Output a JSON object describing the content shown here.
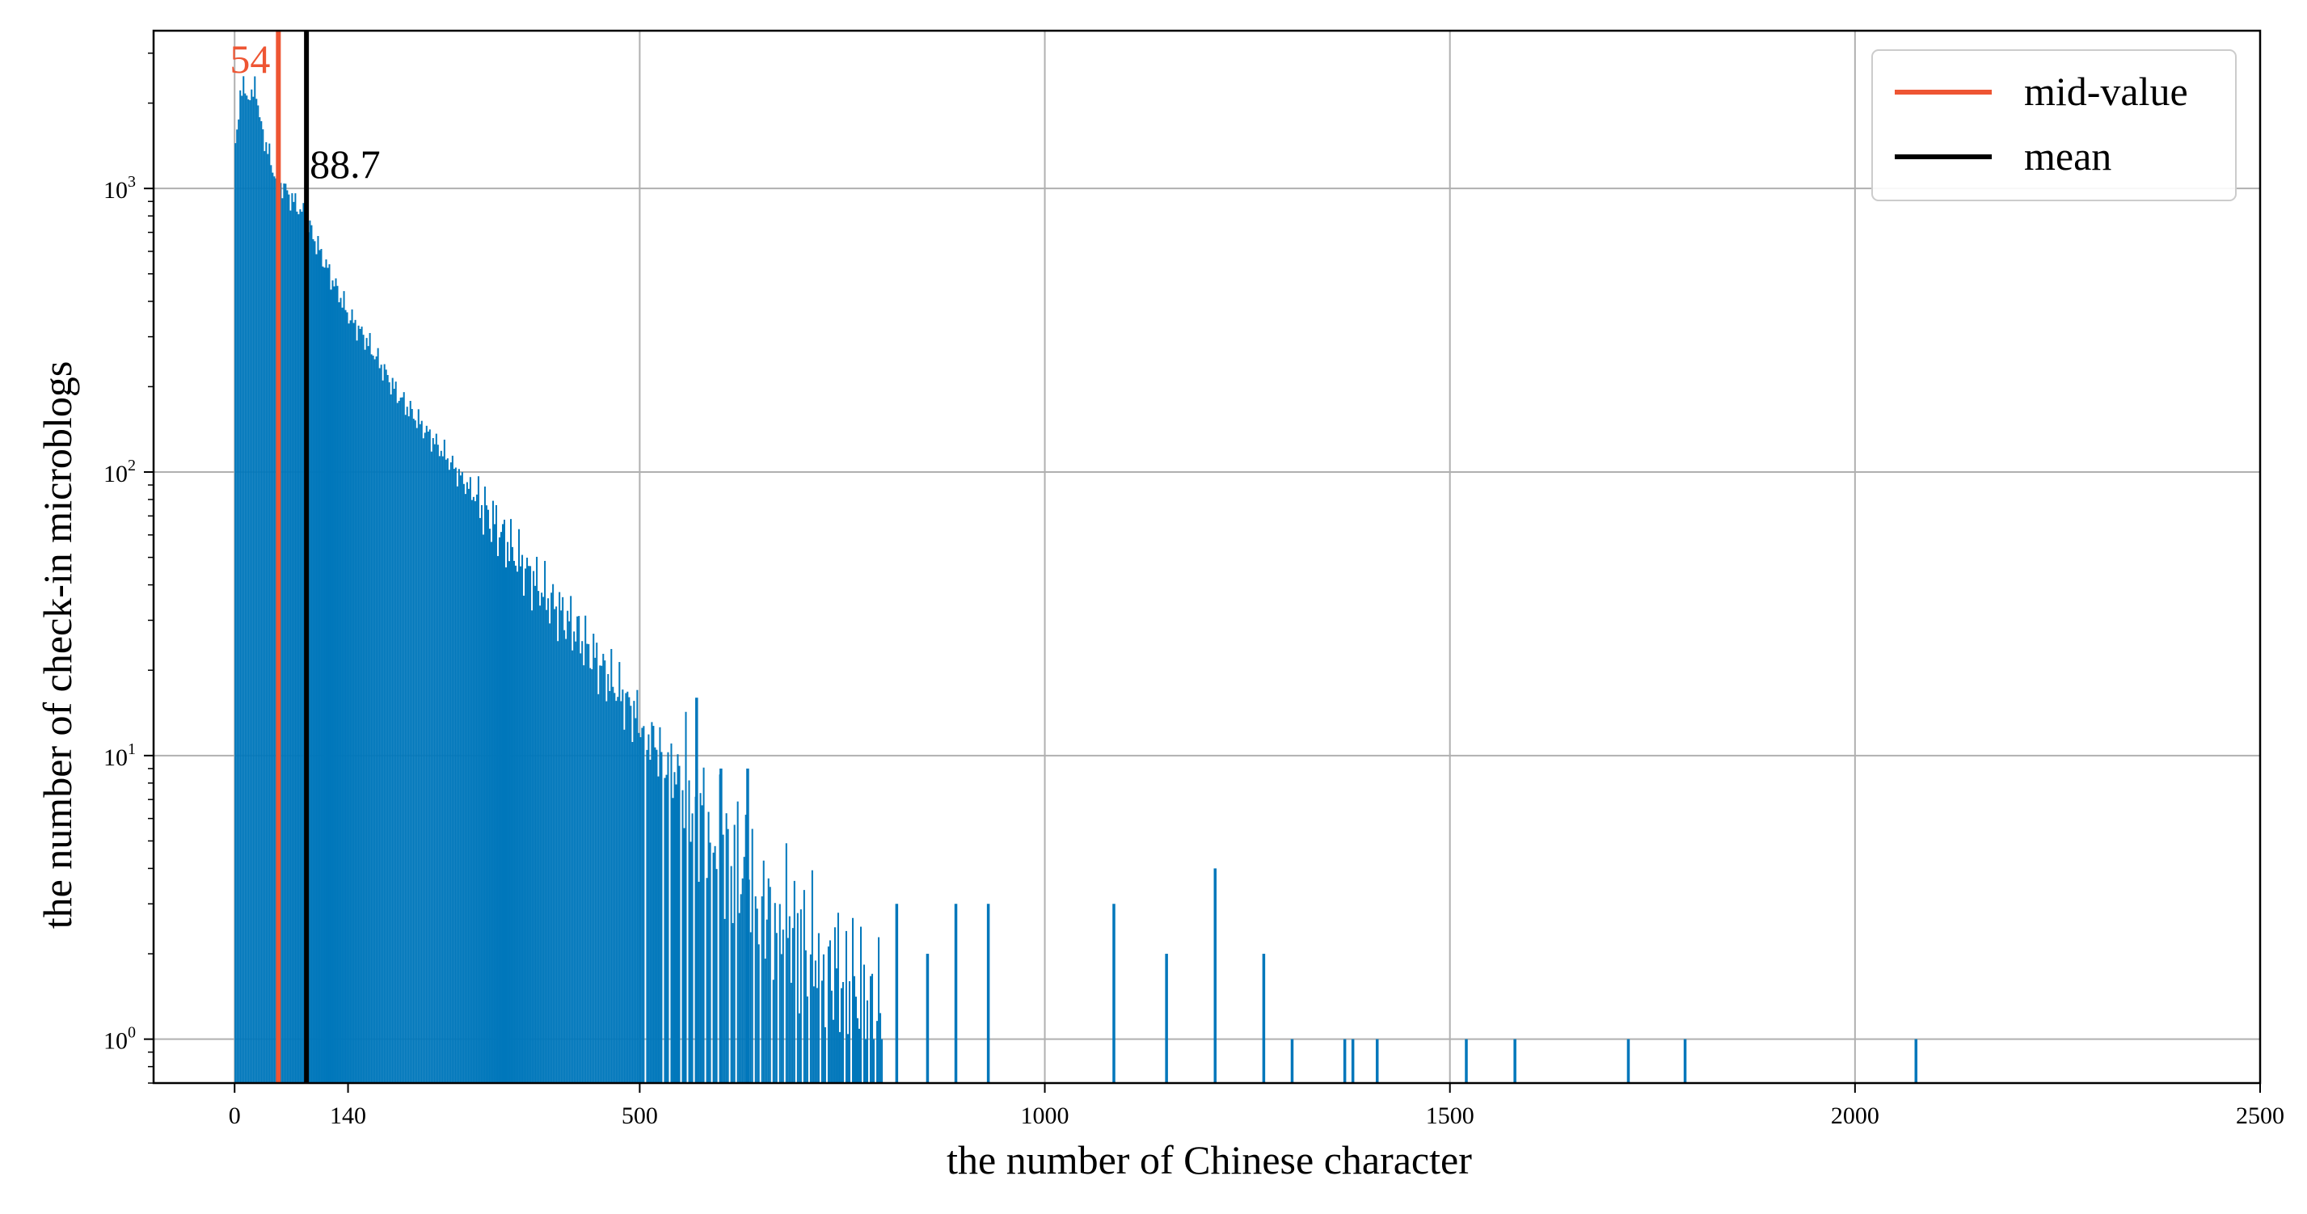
{
  "chart_data": {
    "type": "bar",
    "title": "",
    "xlabel": "the number of Chinese character",
    "ylabel": "the number of check-in microblogs",
    "x_scale": "linear",
    "y_scale": "log",
    "xlim": [
      -100,
      2500
    ],
    "ylim": [
      0.7,
      3600
    ],
    "grid": true,
    "legend_position": "top-right",
    "bar_color": "#0077bb",
    "x_ticks": [
      {
        "value": 0,
        "label": "0"
      },
      {
        "value": 140,
        "label": "140"
      },
      {
        "value": 500,
        "label": "500"
      },
      {
        "value": 1000,
        "label": "1000"
      },
      {
        "value": 1500,
        "label": "1500"
      },
      {
        "value": 2000,
        "label": "2000"
      },
      {
        "value": 2500,
        "label": "2500"
      }
    ],
    "y_ticks": [
      {
        "value": 1,
        "base": "10",
        "exp": "0"
      },
      {
        "value": 10,
        "base": "10",
        "exp": "1"
      },
      {
        "value": 100,
        "base": "10",
        "exp": "2"
      },
      {
        "value": 1000,
        "base": "10",
        "exp": "3"
      }
    ],
    "reference_lines": [
      {
        "name": "mid-value",
        "x": 54,
        "label": "54",
        "color": "#ee5533"
      },
      {
        "name": "mean",
        "x": 88.7,
        "label": "88.7",
        "color": "#000000"
      }
    ],
    "histogram_curve": {
      "bin_width": 2,
      "description_points": [
        [
          0,
          1300
        ],
        [
          4,
          1600
        ],
        [
          6,
          2200
        ],
        [
          10,
          2300
        ],
        [
          14,
          2100
        ],
        [
          18,
          2200
        ],
        [
          22,
          2000
        ],
        [
          26,
          2500
        ],
        [
          30,
          1800
        ],
        [
          34,
          1600
        ],
        [
          40,
          1400
        ],
        [
          46,
          1200
        ],
        [
          54,
          1050
        ],
        [
          62,
          1000
        ],
        [
          70,
          920
        ],
        [
          80,
          850
        ],
        [
          90,
          760
        ],
        [
          100,
          650
        ],
        [
          110,
          560
        ],
        [
          120,
          480
        ],
        [
          130,
          420
        ],
        [
          140,
          360
        ],
        [
          160,
          300
        ],
        [
          180,
          240
        ],
        [
          200,
          190
        ],
        [
          220,
          160
        ],
        [
          240,
          135
        ],
        [
          260,
          115
        ],
        [
          280,
          95
        ],
        [
          300,
          80
        ],
        [
          330,
          60
        ],
        [
          360,
          45
        ],
        [
          390,
          35
        ],
        [
          420,
          28
        ],
        [
          450,
          21
        ],
        [
          480,
          16
        ],
        [
          510,
          12
        ],
        [
          540,
          9
        ],
        [
          570,
          7
        ],
        [
          600,
          5
        ],
        [
          630,
          3.8
        ],
        [
          660,
          3
        ],
        [
          700,
          2.3
        ],
        [
          740,
          1.8
        ],
        [
          780,
          1.4
        ],
        [
          800,
          1.3
        ]
      ]
    },
    "sparse_bars": [
      {
        "x": 570,
        "y": 16
      },
      {
        "x": 600,
        "y": 9
      },
      {
        "x": 633,
        "y": 9
      },
      {
        "x": 817,
        "y": 3
      },
      {
        "x": 855,
        "y": 2
      },
      {
        "x": 890,
        "y": 3
      },
      {
        "x": 930,
        "y": 3
      },
      {
        "x": 1085,
        "y": 3
      },
      {
        "x": 1150,
        "y": 2
      },
      {
        "x": 1210,
        "y": 4
      },
      {
        "x": 1270,
        "y": 2
      },
      {
        "x": 1305,
        "y": 1
      },
      {
        "x": 1370,
        "y": 1
      },
      {
        "x": 1380,
        "y": 1
      },
      {
        "x": 1410,
        "y": 1
      },
      {
        "x": 1520,
        "y": 1
      },
      {
        "x": 1580,
        "y": 1
      },
      {
        "x": 1720,
        "y": 1
      },
      {
        "x": 1790,
        "y": 1
      },
      {
        "x": 2075,
        "y": 1
      }
    ]
  },
  "legend": {
    "items": [
      {
        "label": "mid-value",
        "color": "#ee5533"
      },
      {
        "label": "mean",
        "color": "#000000"
      }
    ]
  }
}
